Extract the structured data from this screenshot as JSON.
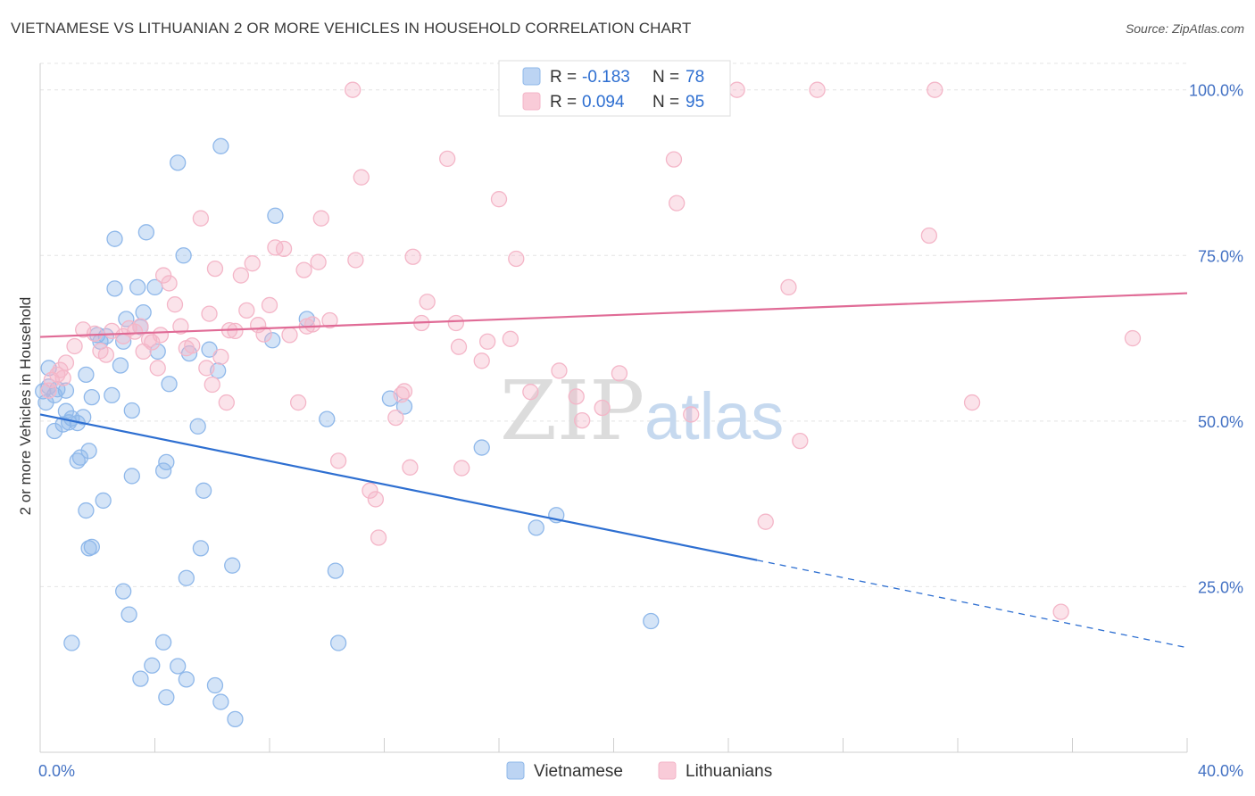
{
  "title": "VIETNAMESE VS LITHUANIAN 2 OR MORE VEHICLES IN HOUSEHOLD CORRELATION CHART",
  "source": "Source: ZipAtlas.com",
  "watermark": {
    "zip": "ZIP",
    "atlas": "atlas"
  },
  "legend": {
    "r_label": "R =",
    "n_label": "N =",
    "rows": [
      {
        "r": "-0.183",
        "n": "78"
      },
      {
        "r": "0.094",
        "n": "95"
      }
    ]
  },
  "chart_data": {
    "type": "scatter",
    "title": "VIETNAMESE VS LITHUANIAN 2 OR MORE VEHICLES IN HOUSEHOLD CORRELATION CHART",
    "xlabel": "",
    "ylabel": "2 or more Vehicles in Household",
    "xlim": [
      0,
      40
    ],
    "ylim": [
      0,
      104
    ],
    "x_tick_labels": [
      {
        "value": 0,
        "label": "0.0%"
      },
      {
        "value": 40,
        "label": "40.0%"
      }
    ],
    "y_tick_labels": [
      {
        "value": 25,
        "label": "25.0%"
      },
      {
        "value": 50,
        "label": "50.0%"
      },
      {
        "value": 75,
        "label": "75.0%"
      },
      {
        "value": 100,
        "label": "100.0%"
      }
    ],
    "x_minor_ticks": [
      0,
      4,
      8,
      12,
      16,
      20,
      24,
      28,
      32,
      36,
      40
    ],
    "grid": true,
    "legend_position": "top-center",
    "series": [
      {
        "name": "Vietnamese",
        "color": "#8fb8ea",
        "line_color": "#2e6fd1",
        "r": -0.183,
        "n": 78,
        "trend": {
          "x0": 0,
          "y0": 51,
          "x1": 25,
          "y1": 29,
          "dash_to_x": 40,
          "dash_to_y": 15.8
        },
        "points": [
          [
            0.1,
            54.5
          ],
          [
            0.3,
            55.2
          ],
          [
            0.2,
            52.8
          ],
          [
            0.5,
            53.9
          ],
          [
            0.6,
            54.8
          ],
          [
            0.3,
            58
          ],
          [
            0.8,
            49.5
          ],
          [
            1,
            49.8
          ],
          [
            1.1,
            50.4
          ],
          [
            1.3,
            49.7
          ],
          [
            0.9,
            51.5
          ],
          [
            1.5,
            50.6
          ],
          [
            1.6,
            57
          ],
          [
            1.8,
            53.6
          ],
          [
            2,
            63
          ],
          [
            2.1,
            62
          ],
          [
            2.3,
            62.8
          ],
          [
            2.5,
            53.9
          ],
          [
            2.6,
            70
          ],
          [
            2.8,
            58.4
          ],
          [
            3,
            65.4
          ],
          [
            3.2,
            51.6
          ],
          [
            3.4,
            70.2
          ],
          [
            3.6,
            66.4
          ],
          [
            3.7,
            78.5
          ],
          [
            4,
            70.2
          ],
          [
            4.1,
            60.5
          ],
          [
            4.4,
            43.8
          ],
          [
            4.5,
            55.6
          ],
          [
            4.8,
            89
          ],
          [
            5,
            75
          ],
          [
            5.2,
            60.2
          ],
          [
            5.5,
            49.2
          ],
          [
            5.7,
            39.5
          ],
          [
            5.9,
            60.8
          ],
          [
            6.2,
            57.6
          ],
          [
            6.3,
            91.5
          ],
          [
            1.3,
            44
          ],
          [
            1.4,
            44.5
          ],
          [
            1.7,
            45.5
          ],
          [
            2.2,
            38
          ],
          [
            1.6,
            36.5
          ],
          [
            1.8,
            31
          ],
          [
            1.7,
            30.8
          ],
          [
            3.2,
            41.7
          ],
          [
            4.3,
            42.5
          ],
          [
            5.6,
            30.8
          ],
          [
            5.1,
            26.3
          ],
          [
            6.7,
            28.2
          ],
          [
            2.9,
            24.3
          ],
          [
            3.1,
            20.8
          ],
          [
            1.1,
            16.5
          ],
          [
            4.3,
            16.6
          ],
          [
            3.9,
            13.1
          ],
          [
            4.8,
            13
          ],
          [
            3.5,
            11.1
          ],
          [
            5.1,
            11
          ],
          [
            4.4,
            8.3
          ],
          [
            6.1,
            10.1
          ],
          [
            6.3,
            7.6
          ],
          [
            6.8,
            5
          ],
          [
            2.6,
            77.5
          ],
          [
            2.9,
            62
          ],
          [
            3.5,
            64.2
          ],
          [
            8.2,
            81
          ],
          [
            8.1,
            62.2
          ],
          [
            9.3,
            65.4
          ],
          [
            10,
            50.3
          ],
          [
            10.3,
            27.4
          ],
          [
            10.4,
            16.5
          ],
          [
            12.2,
            53.4
          ],
          [
            12.7,
            52.2
          ],
          [
            15.4,
            46
          ],
          [
            17.3,
            33.9
          ],
          [
            18,
            35.8
          ],
          [
            21.3,
            19.8
          ],
          [
            0.5,
            48.5
          ],
          [
            0.9,
            54.6
          ]
        ]
      },
      {
        "name": "Lithuanians",
        "color": "#f4b6c8",
        "line_color": "#e06b96",
        "r": 0.094,
        "n": 95,
        "trend": {
          "x0": 0,
          "y0": 62.7,
          "x1": 40,
          "y1": 69.3
        },
        "points": [
          [
            0.4,
            56.2
          ],
          [
            0.6,
            57
          ],
          [
            0.3,
            54.6
          ],
          [
            0.7,
            57.7
          ],
          [
            0.9,
            58.8
          ],
          [
            0.8,
            56.5
          ],
          [
            1.2,
            61.3
          ],
          [
            1.5,
            63.8
          ],
          [
            1.9,
            63.2
          ],
          [
            2.1,
            60.6
          ],
          [
            2.3,
            60
          ],
          [
            2.5,
            63.6
          ],
          [
            2.9,
            62.8
          ],
          [
            3.1,
            64
          ],
          [
            3.3,
            63.5
          ],
          [
            3.5,
            64.3
          ],
          [
            3.6,
            60.5
          ],
          [
            3.8,
            62.3
          ],
          [
            4.1,
            58
          ],
          [
            4.3,
            72
          ],
          [
            4.5,
            70.8
          ],
          [
            4.7,
            67.6
          ],
          [
            4.9,
            64.3
          ],
          [
            5.1,
            61
          ],
          [
            5.3,
            61.4
          ],
          [
            5.6,
            80.6
          ],
          [
            5.9,
            66.2
          ],
          [
            6.1,
            73
          ],
          [
            6.3,
            59.7
          ],
          [
            6.6,
            63.7
          ],
          [
            6.5,
            52.8
          ],
          [
            6.8,
            63.6
          ],
          [
            7,
            72
          ],
          [
            7.2,
            66.7
          ],
          [
            7.4,
            73.8
          ],
          [
            7.6,
            64.5
          ],
          [
            7.8,
            63.1
          ],
          [
            8,
            67.5
          ],
          [
            8.2,
            76.2
          ],
          [
            8.5,
            76
          ],
          [
            8.7,
            63
          ],
          [
            9,
            52.8
          ],
          [
            9.2,
            72.8
          ],
          [
            9.5,
            64.6
          ],
          [
            9.7,
            74
          ],
          [
            9.8,
            80.6
          ],
          [
            10.1,
            65.2
          ],
          [
            10.4,
            44
          ],
          [
            11,
            74.3
          ],
          [
            11.2,
            86.8
          ],
          [
            11.5,
            39.5
          ],
          [
            11.7,
            38.2
          ],
          [
            11.8,
            32.4
          ],
          [
            12.4,
            50.5
          ],
          [
            12.7,
            54.5
          ],
          [
            12.9,
            43
          ],
          [
            13,
            74.8
          ],
          [
            13.3,
            64.8
          ],
          [
            13.5,
            68
          ],
          [
            14.2,
            89.6
          ],
          [
            14.6,
            61.2
          ],
          [
            14.7,
            42.9
          ],
          [
            15.4,
            59.1
          ],
          [
            15.6,
            62
          ],
          [
            16,
            83.5
          ],
          [
            16.4,
            62.4
          ],
          [
            16.6,
            74.5
          ],
          [
            17.1,
            54.4
          ],
          [
            17.3,
            100
          ],
          [
            18.1,
            57.6
          ],
          [
            18.7,
            53.7
          ],
          [
            18.9,
            50.1
          ],
          [
            19.6,
            52
          ],
          [
            20.2,
            57.2
          ],
          [
            22.2,
            82.9
          ],
          [
            22.1,
            89.5
          ],
          [
            22.7,
            51
          ],
          [
            24.3,
            100
          ],
          [
            25.3,
            34.8
          ],
          [
            26.1,
            70.2
          ],
          [
            26.5,
            47
          ],
          [
            27.1,
            100
          ],
          [
            31,
            78
          ],
          [
            31.2,
            100
          ],
          [
            32.5,
            52.8
          ],
          [
            35.6,
            21.2
          ],
          [
            38.1,
            62.5
          ],
          [
            10.9,
            100
          ],
          [
            9.3,
            64.3
          ],
          [
            6,
            55.5
          ],
          [
            4.2,
            63
          ],
          [
            5.8,
            58
          ],
          [
            12.6,
            54
          ],
          [
            14.5,
            64.8
          ],
          [
            3.9,
            61.9
          ]
        ]
      }
    ]
  }
}
